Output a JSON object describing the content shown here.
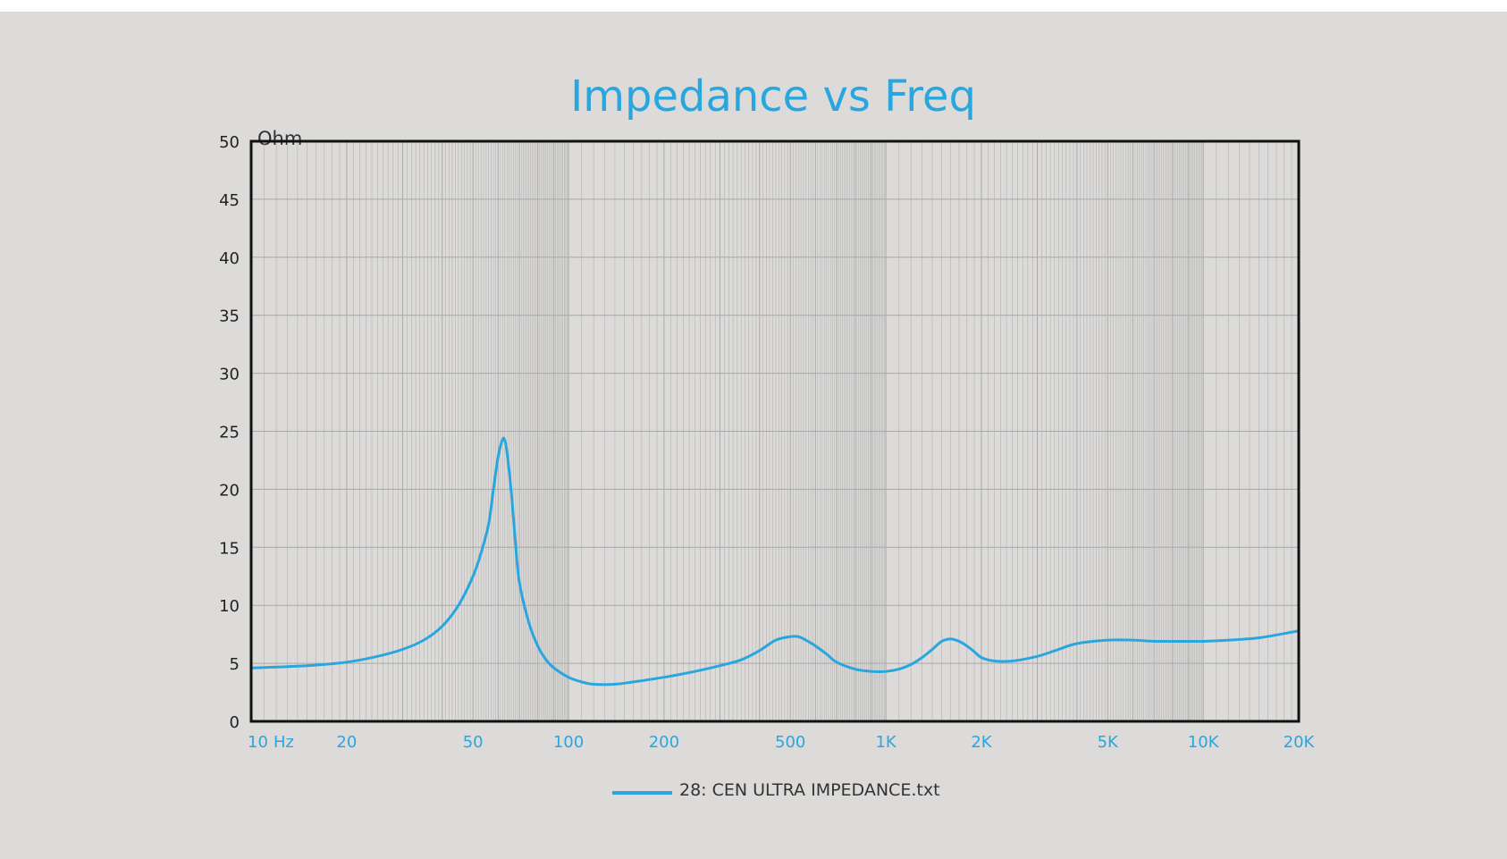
{
  "chart_data": {
    "type": "line",
    "title": "Impedance vs Freq",
    "ylabel": "Ohm",
    "xlabel": "",
    "x_scale": "log",
    "xlim": [
      10,
      20000
    ],
    "ylim": [
      0,
      50
    ],
    "grid": true,
    "legend_position": "bottom-center",
    "yticks": [
      "0",
      "5",
      "10",
      "15",
      "20",
      "25",
      "30",
      "35",
      "40",
      "45",
      "50"
    ],
    "xticks": [
      {
        "value": 10,
        "label": "10"
      },
      {
        "value": 20,
        "label": "20"
      },
      {
        "value": 50,
        "label": "50"
      },
      {
        "value": 100,
        "label": "100"
      },
      {
        "value": 200,
        "label": "200"
      },
      {
        "value": 500,
        "label": "500"
      },
      {
        "value": 1000,
        "label": "1K"
      },
      {
        "value": 2000,
        "label": "2K"
      },
      {
        "value": 5000,
        "label": "5K"
      },
      {
        "value": 10000,
        "label": "10K"
      },
      {
        "value": 20000,
        "label": "20K"
      }
    ],
    "x_unit_label": "Hz",
    "colors": {
      "series": "#2aa6df",
      "axis": "#111111",
      "grid": "#a8a8a8",
      "text_blue": "#2aa6df"
    },
    "series": [
      {
        "name": "28: CEN ULTRA IMPEDANCE.txt",
        "x": [
          10,
          15,
          20,
          25,
          30,
          35,
          40,
          45,
          50,
          53,
          56,
          58,
          60,
          62,
          63,
          64,
          66,
          68,
          70,
          75,
          80,
          85,
          90,
          100,
          110,
          120,
          140,
          160,
          200,
          250,
          300,
          350,
          400,
          450,
          500,
          530,
          560,
          600,
          650,
          700,
          800,
          900,
          1000,
          1100,
          1200,
          1300,
          1400,
          1500,
          1600,
          1700,
          1800,
          1900,
          2000,
          2200,
          2500,
          3000,
          3500,
          4000,
          5000,
          6000,
          7000,
          8000,
          10000,
          12000,
          15000,
          20000
        ],
        "y": [
          4.6,
          4.8,
          5.1,
          5.6,
          6.2,
          7.0,
          8.2,
          10.0,
          12.5,
          14.5,
          17.0,
          20.0,
          22.8,
          24.3,
          24.2,
          23.2,
          19.8,
          15.5,
          12.0,
          8.5,
          6.5,
          5.3,
          4.6,
          3.8,
          3.4,
          3.2,
          3.2,
          3.4,
          3.8,
          4.3,
          4.8,
          5.3,
          6.1,
          7.0,
          7.3,
          7.3,
          7.0,
          6.5,
          5.8,
          5.1,
          4.5,
          4.3,
          4.3,
          4.5,
          4.9,
          5.5,
          6.2,
          6.9,
          7.1,
          6.9,
          6.5,
          6.0,
          5.5,
          5.2,
          5.2,
          5.6,
          6.2,
          6.7,
          7.0,
          7.0,
          6.9,
          6.9,
          6.9,
          7.0,
          7.2,
          7.8
        ]
      }
    ]
  }
}
